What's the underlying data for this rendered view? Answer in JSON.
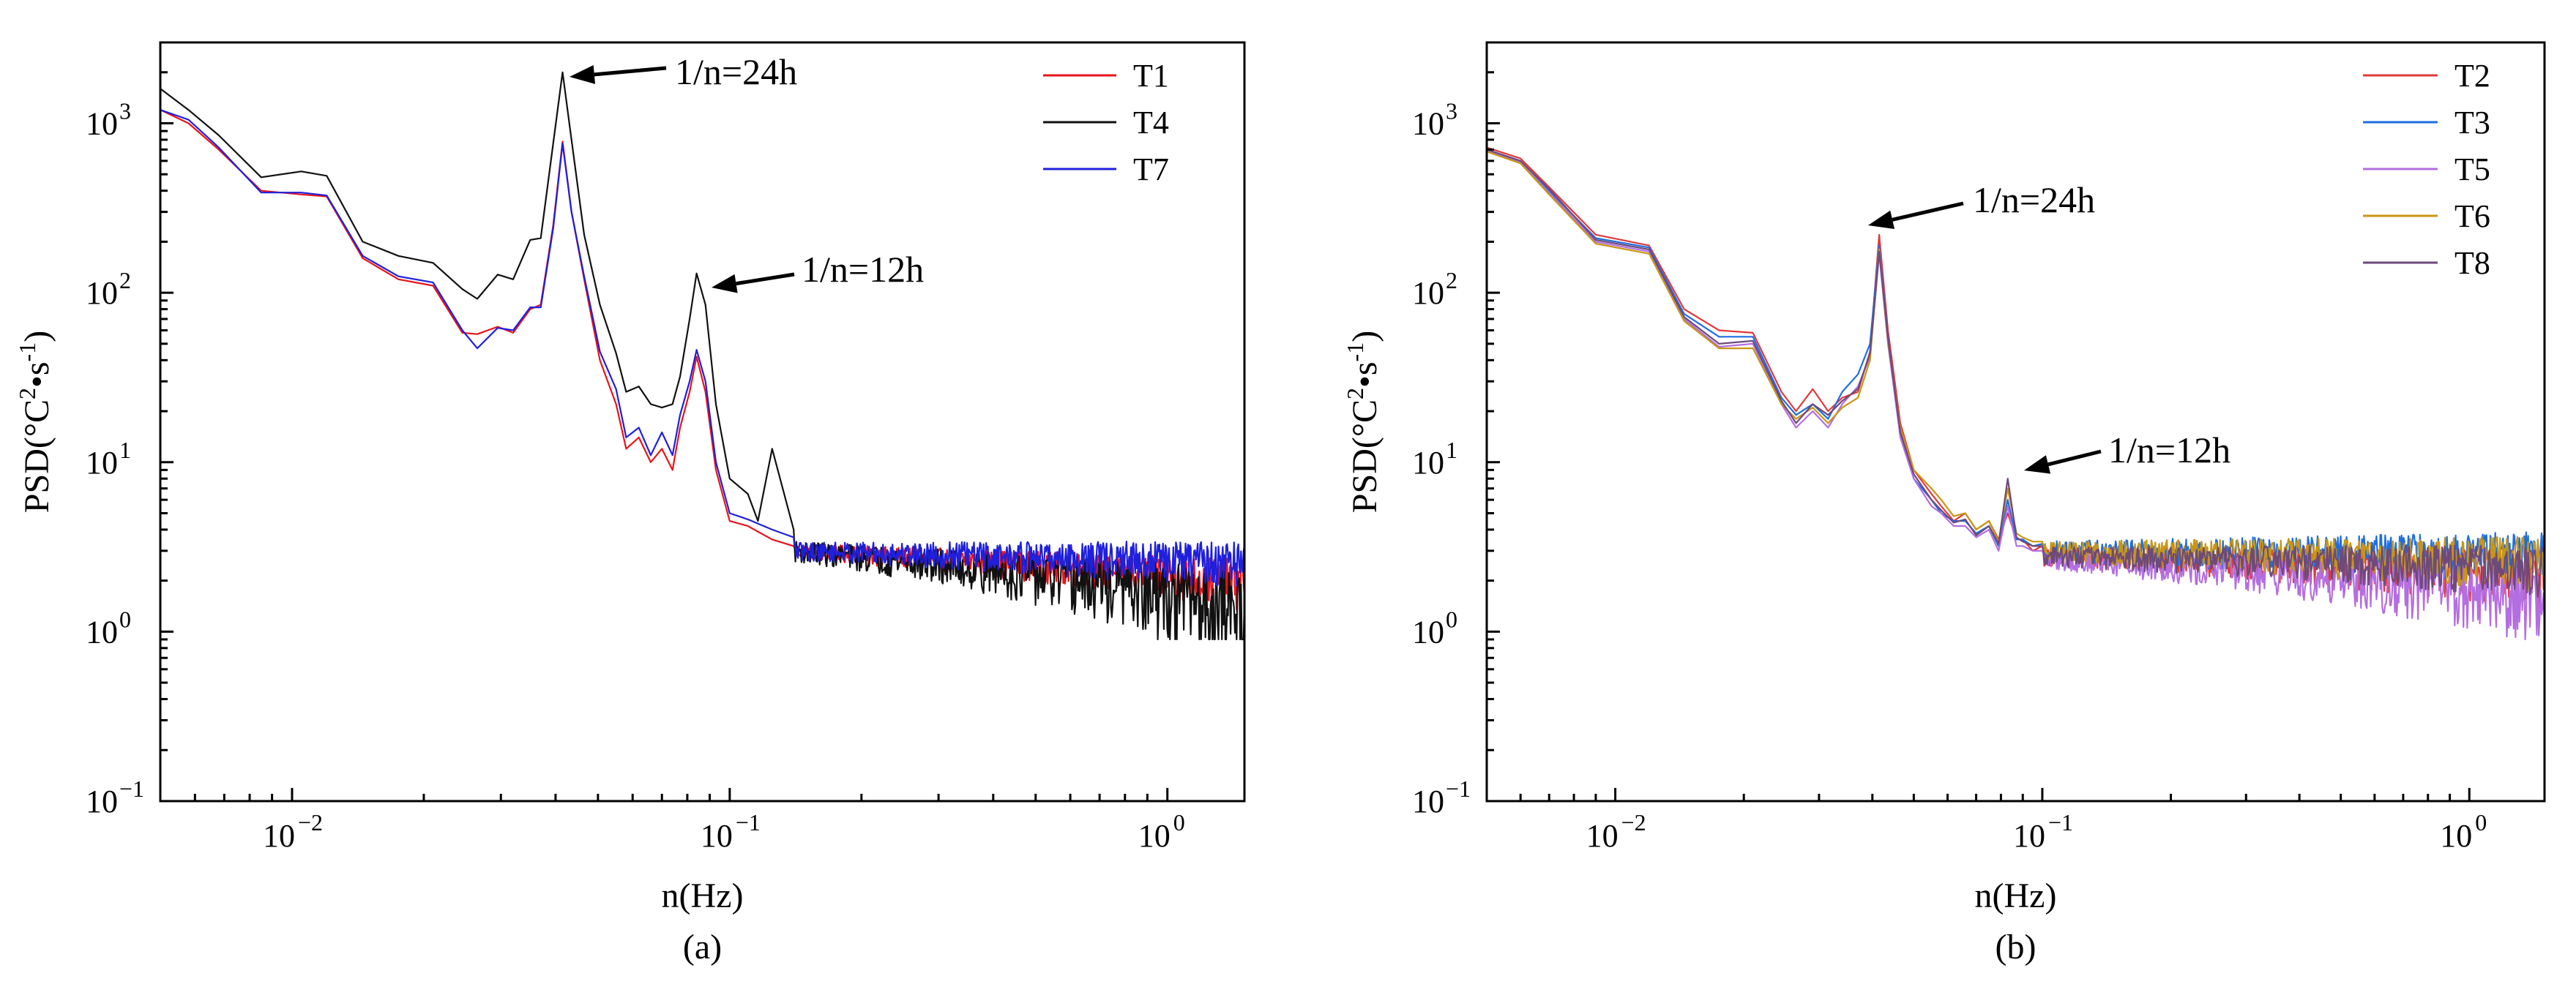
{
  "figure": {
    "panels": [
      "(a)",
      "(b)"
    ]
  },
  "chart_data": [
    {
      "type": "line",
      "panel_label": "(a)",
      "xlabel": "n(Hz)",
      "ylabel_base": "PSD(°C",
      "ylabel_sup1": "2",
      "ylabel_mid": "•s",
      "ylabel_sup2": "-1",
      "ylabel_end": ")",
      "xscale": "log",
      "yscale": "log",
      "xlim": [
        0.005,
        1.5
      ],
      "ylim": [
        0.1,
        3000
      ],
      "x_ticks": [
        {
          "value": 0.01,
          "base": "10",
          "exp": "−2"
        },
        {
          "value": 0.1,
          "base": "10",
          "exp": "−1"
        },
        {
          "value": 1,
          "base": "10",
          "exp": "0"
        }
      ],
      "y_ticks": [
        {
          "value": 0.1,
          "base": "10",
          "exp": "−1"
        },
        {
          "value": 1,
          "base": "10",
          "exp": "0"
        },
        {
          "value": 10,
          "base": "10",
          "exp": "1"
        },
        {
          "value": 100,
          "base": "10",
          "exp": "2"
        },
        {
          "value": 1000,
          "base": "10",
          "exp": "3"
        }
      ],
      "legend": {
        "placement": "top-right"
      },
      "annotations": [
        {
          "text": "1/n=24h",
          "x": 0.042,
          "y": 2000
        },
        {
          "text": "1/n=12h",
          "x": 0.084,
          "y": 128
        }
      ],
      "series": [
        {
          "name": "T1",
          "color": "#e8141b",
          "x": [
            0.005,
            0.0058,
            0.0068,
            0.0085,
            0.0105,
            0.012,
            0.0145,
            0.0175,
            0.021,
            0.0245,
            0.0265,
            0.0295,
            0.032,
            0.035,
            0.037,
            0.0395,
            0.0415,
            0.0435,
            0.0465,
            0.0505,
            0.055,
            0.058,
            0.062,
            0.066,
            0.07,
            0.074,
            0.077,
            0.081,
            0.084,
            0.088,
            0.093,
            0.1,
            0.11,
            0.125,
            0.14
          ],
          "values": [
            1200,
            1000,
            700,
            400,
            380,
            370,
            160,
            120,
            110,
            58,
            57,
            63,
            58,
            80,
            85,
            250,
            780,
            300,
            120,
            40,
            22,
            12,
            14,
            10,
            12,
            9,
            16,
            26,
            42,
            26,
            9,
            4.5,
            4.2,
            3.5,
            3.2
          ],
          "tail": {
            "level_start": 3.0,
            "level_end": 2.0,
            "noise": 0.5
          }
        },
        {
          "name": "T4",
          "color": "#111111",
          "x": [
            0.005,
            0.0058,
            0.0068,
            0.0085,
            0.0105,
            0.012,
            0.0145,
            0.0175,
            0.021,
            0.0245,
            0.0265,
            0.0295,
            0.032,
            0.035,
            0.037,
            0.0395,
            0.0415,
            0.0435,
            0.0465,
            0.0505,
            0.055,
            0.058,
            0.062,
            0.066,
            0.07,
            0.074,
            0.077,
            0.081,
            0.084,
            0.088,
            0.093,
            0.1,
            0.11,
            0.116,
            0.125,
            0.14
          ],
          "values": [
            1600,
            1200,
            850,
            480,
            520,
            490,
            200,
            165,
            150,
            105,
            92,
            128,
            120,
            205,
            210,
            760,
            2000,
            800,
            220,
            85,
            44,
            26,
            28,
            22,
            21,
            22,
            32,
            70,
            130,
            85,
            22,
            8,
            6.5,
            4.5,
            12,
            4
          ],
          "tail": {
            "level_start": 3.0,
            "level_end": 1.4,
            "noise": 0.7
          }
        },
        {
          "name": "T7",
          "color": "#1f1fdc",
          "x": [
            0.005,
            0.0058,
            0.0068,
            0.0085,
            0.0105,
            0.012,
            0.0145,
            0.0175,
            0.021,
            0.0245,
            0.0265,
            0.0295,
            0.032,
            0.035,
            0.037,
            0.0395,
            0.0415,
            0.0435,
            0.0465,
            0.0505,
            0.055,
            0.058,
            0.062,
            0.066,
            0.07,
            0.074,
            0.077,
            0.081,
            0.084,
            0.088,
            0.093,
            0.1,
            0.11,
            0.125,
            0.14
          ],
          "values": [
            1200,
            1050,
            720,
            390,
            390,
            375,
            165,
            125,
            115,
            60,
            47,
            62,
            60,
            82,
            82,
            240,
            760,
            300,
            125,
            45,
            27,
            14,
            16,
            11,
            15,
            11,
            19,
            30,
            46,
            30,
            10,
            5,
            4.6,
            4.0,
            3.6
          ],
          "tail": {
            "level_start": 3.0,
            "level_end": 2.6,
            "noise": 0.6
          }
        }
      ]
    },
    {
      "type": "line",
      "panel_label": "(b)",
      "xlabel": "n(Hz)",
      "ylabel_base": "PSD(°C",
      "ylabel_sup1": "2",
      "ylabel_mid": "•s",
      "ylabel_sup2": "-1",
      "ylabel_end": ")",
      "xscale": "log",
      "yscale": "log",
      "xlim": [
        0.005,
        1.5
      ],
      "ylim": [
        0.1,
        3000
      ],
      "x_ticks": [
        {
          "value": 0.01,
          "base": "10",
          "exp": "−2"
        },
        {
          "value": 0.1,
          "base": "10",
          "exp": "−1"
        },
        {
          "value": 1,
          "base": "10",
          "exp": "0"
        }
      ],
      "y_ticks": [
        {
          "value": 0.1,
          "base": "10",
          "exp": "−1"
        },
        {
          "value": 1,
          "base": "10",
          "exp": "0"
        },
        {
          "value": 10,
          "base": "10",
          "exp": "1"
        },
        {
          "value": 100,
          "base": "10",
          "exp": "2"
        },
        {
          "value": 1000,
          "base": "10",
          "exp": "3"
        }
      ],
      "legend": {
        "placement": "top-right"
      },
      "annotations": [
        {
          "text": "1/n=24h",
          "x": 0.042,
          "y": 230
        },
        {
          "text": "1/n=12h",
          "x": 0.084,
          "y": 7.5
        }
      ],
      "series": [
        {
          "name": "T2",
          "color": "#e03a3a",
          "x": [
            0.005,
            0.006,
            0.007,
            0.009,
            0.012,
            0.0145,
            0.0175,
            0.021,
            0.0245,
            0.0265,
            0.029,
            0.0315,
            0.034,
            0.037,
            0.0395,
            0.0415,
            0.0435,
            0.0465,
            0.05,
            0.055,
            0.058,
            0.062,
            0.066,
            0.07,
            0.075,
            0.079,
            0.083,
            0.087,
            0.09,
            0.095,
            0.1
          ],
          "values": [
            720,
            620,
            420,
            220,
            190,
            80,
            60,
            58,
            26,
            20,
            27,
            20,
            24,
            26,
            45,
            220,
            60,
            17,
            9,
            6.5,
            5.5,
            4.5,
            5,
            4,
            4.5,
            3.5,
            5,
            3.5,
            3.5,
            3,
            3.2
          ],
          "tail": {
            "level_start": 2.8,
            "level_end": 2.2,
            "noise": 0.6
          }
        },
        {
          "name": "T3",
          "color": "#1f6ee0",
          "x": [
            0.005,
            0.006,
            0.007,
            0.009,
            0.012,
            0.0145,
            0.0175,
            0.021,
            0.0245,
            0.0265,
            0.029,
            0.0315,
            0.034,
            0.037,
            0.0395,
            0.0415,
            0.0435,
            0.0465,
            0.05,
            0.055,
            0.058,
            0.062,
            0.066,
            0.07,
            0.075,
            0.079,
            0.083,
            0.087,
            0.09,
            0.095,
            0.1
          ],
          "values": [
            700,
            600,
            400,
            210,
            185,
            75,
            55,
            55,
            24,
            19,
            22,
            18,
            26,
            33,
            50,
            190,
            55,
            15,
            8,
            6,
            5,
            4.5,
            4.5,
            3.8,
            4.2,
            3.2,
            6,
            3.5,
            3.5,
            3.2,
            3.3
          ],
          "tail": {
            "level_start": 3.0,
            "level_end": 2.9,
            "noise": 0.7
          }
        },
        {
          "name": "T5",
          "color": "#b46ee0",
          "x": [
            0.005,
            0.006,
            0.007,
            0.009,
            0.012,
            0.0145,
            0.0175,
            0.021,
            0.0245,
            0.0265,
            0.029,
            0.0315,
            0.034,
            0.037,
            0.0395,
            0.0415,
            0.0435,
            0.0465,
            0.05,
            0.055,
            0.058,
            0.062,
            0.066,
            0.07,
            0.075,
            0.079,
            0.083,
            0.087,
            0.09,
            0.095,
            0.1
          ],
          "values": [
            690,
            590,
            390,
            200,
            175,
            70,
            48,
            50,
            22,
            16,
            20,
            16,
            22,
            28,
            42,
            170,
            50,
            14,
            8,
            5.5,
            5,
            4.2,
            4.2,
            3.6,
            4,
            3,
            5.5,
            3.2,
            3.2,
            3.0,
            3.0
          ],
          "tail": {
            "level_start": 2.7,
            "level_end": 1.6,
            "noise": 0.6
          }
        },
        {
          "name": "T6",
          "color": "#c89614",
          "x": [
            0.005,
            0.006,
            0.007,
            0.009,
            0.012,
            0.0145,
            0.0175,
            0.021,
            0.0245,
            0.0265,
            0.029,
            0.0315,
            0.034,
            0.037,
            0.0395,
            0.0415,
            0.0435,
            0.0465,
            0.05,
            0.055,
            0.058,
            0.062,
            0.066,
            0.07,
            0.075,
            0.079,
            0.083,
            0.087,
            0.09,
            0.095,
            0.1
          ],
          "values": [
            680,
            580,
            380,
            195,
            170,
            68,
            47,
            47,
            22,
            18,
            21,
            17,
            21,
            24,
            40,
            180,
            52,
            16,
            9,
            7,
            6,
            4.8,
            5,
            4,
            4.5,
            3.4,
            7,
            3.8,
            3.6,
            3.4,
            3.4
          ],
          "tail": {
            "level_start": 3.0,
            "level_end": 2.7,
            "noise": 0.7
          }
        },
        {
          "name": "T8",
          "color": "#6e4a7a",
          "x": [
            0.005,
            0.006,
            0.007,
            0.009,
            0.012,
            0.0145,
            0.0175,
            0.021,
            0.0245,
            0.0265,
            0.029,
            0.0315,
            0.034,
            0.037,
            0.0395,
            0.0415,
            0.0435,
            0.0465,
            0.05,
            0.055,
            0.058,
            0.062,
            0.066,
            0.07,
            0.075,
            0.079,
            0.083,
            0.087,
            0.09,
            0.095,
            0.1
          ],
          "values": [
            700,
            600,
            410,
            205,
            180,
            72,
            50,
            52,
            23,
            17,
            22,
            19,
            23,
            27,
            44,
            175,
            54,
            15,
            8.5,
            6,
            5.2,
            4.4,
            4.6,
            3.7,
            4.2,
            3.3,
            8,
            3.6,
            3.4,
            3.2,
            3.2
          ],
          "tail": {
            "level_start": 2.8,
            "level_end": 2.4,
            "noise": 0.6
          }
        }
      ]
    }
  ]
}
